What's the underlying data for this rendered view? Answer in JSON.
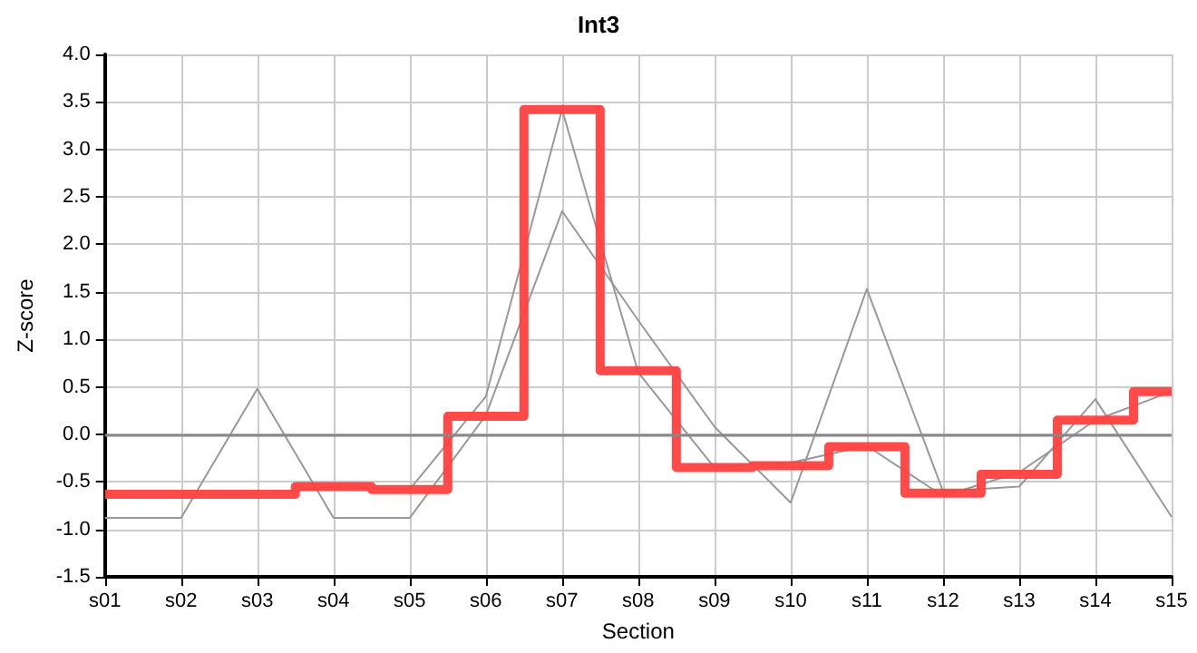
{
  "chart_data": {
    "type": "line",
    "title": "Int3",
    "xlabel": "Section",
    "ylabel": "Z-score",
    "categories": [
      "s01",
      "s02",
      "s03",
      "s04",
      "s05",
      "s06",
      "s07",
      "s08",
      "s09",
      "s10",
      "s11",
      "s12",
      "s13",
      "s14",
      "s15"
    ],
    "series": [
      {
        "color": "#999999",
        "values": [
          -0.88,
          -0.88,
          0.48,
          -0.88,
          -0.88,
          0.2,
          2.35,
          1.2,
          0.08,
          -0.72,
          1.53,
          -0.6,
          -0.55,
          0.37,
          -0.87
        ]
      },
      {
        "color": "#999999",
        "values": [
          null,
          -0.63,
          -0.63,
          -0.55,
          -0.58,
          0.4,
          3.42,
          0.65,
          -0.35,
          -0.3,
          -0.12,
          -0.65,
          -0.4,
          0.15,
          0.45
        ]
      },
      {
        "type": "step",
        "color": "#ff4040",
        "values": [
          -0.63,
          -0.63,
          -0.63,
          -0.55,
          -0.58,
          0.19,
          3.42,
          0.67,
          -0.35,
          -0.33,
          -0.13,
          -0.62,
          -0.42,
          0.15,
          0.45
        ]
      }
    ],
    "ylim": [
      -1.5,
      4
    ],
    "yticks": [
      {
        "value": -1.5,
        "label": "-1.5"
      },
      {
        "value": -1,
        "label": "-1.0"
      },
      {
        "value": -0.5,
        "label": "-0.5"
      },
      {
        "value": 0,
        "label": "0.0"
      },
      {
        "value": 0.5,
        "label": "0.5"
      },
      {
        "value": 1,
        "label": "1.0"
      },
      {
        "value": 1.5,
        "label": "1.5"
      },
      {
        "value": 2,
        "label": "2.0"
      },
      {
        "value": 2.5,
        "label": "2.5"
      },
      {
        "value": 3,
        "label": "3.0"
      },
      {
        "value": 3.5,
        "label": "3.5"
      },
      {
        "value": 4,
        "label": "4.0"
      }
    ],
    "ref_lines": [
      {
        "axis": "y",
        "value": 0,
        "color": "#888888"
      }
    ],
    "grid": true,
    "marker": "none",
    "line_style": "solid"
  }
}
